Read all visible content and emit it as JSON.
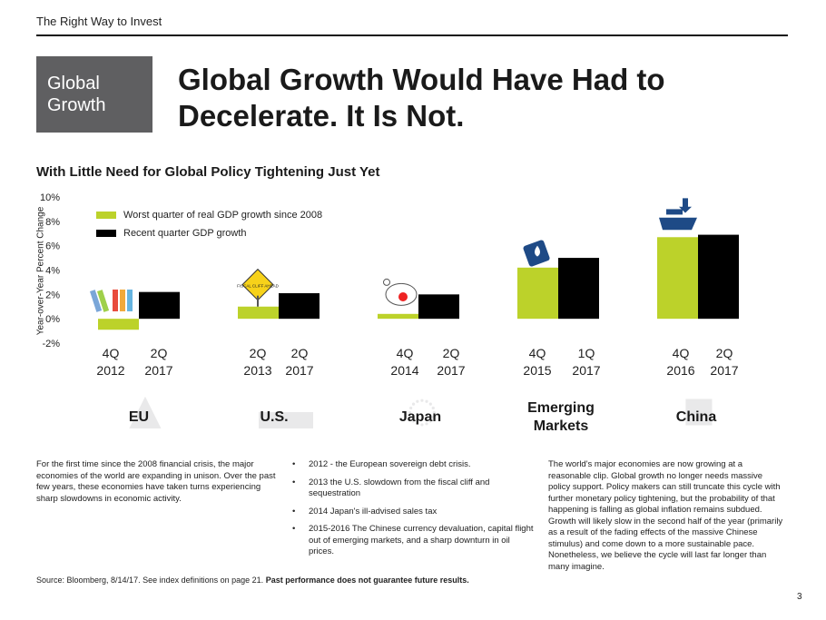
{
  "header": {
    "tagline": "The Right Way to Invest"
  },
  "badge": {
    "line1": "Global",
    "line2": "Growth"
  },
  "title": {
    "line1": "Global Growth Would Have Had to",
    "line2": "Decelerate.  It Is Not."
  },
  "subtitle": "With Little Need for Global Policy Tightening Just Yet",
  "colors": {
    "worst": "#bcd22a",
    "recent": "#000000",
    "badge_bg": "#5f5f61",
    "map": "#e9e9ea"
  },
  "chart_data": {
    "type": "bar",
    "ylabel": "Year-over-Year Percent Change",
    "ylim": [
      -2,
      10
    ],
    "yticks": [
      "10%",
      "8%",
      "6%",
      "4%",
      "2%",
      "0%",
      "-2%"
    ],
    "legend": {
      "placement": "top-left"
    },
    "series": [
      {
        "name": "Worst quarter of real GDP growth since 2008",
        "values": [
          -0.9,
          1.0,
          0.4,
          4.2,
          6.7
        ]
      },
      {
        "name": "Recent quarter GDP growth",
        "values": [
          2.2,
          2.1,
          2.0,
          5.0,
          6.9
        ]
      }
    ],
    "groups": [
      {
        "region": "EU",
        "labels": [
          {
            "q": "4Q",
            "y": "2012"
          },
          {
            "q": "2Q",
            "y": "2017"
          }
        ]
      },
      {
        "region": "U.S.",
        "labels": [
          {
            "q": "2Q",
            "y": "2013"
          },
          {
            "q": "2Q",
            "y": "2017"
          }
        ]
      },
      {
        "region": "Japan",
        "labels": [
          {
            "q": "4Q",
            "y": "2014"
          },
          {
            "q": "2Q",
            "y": "2017"
          }
        ]
      },
      {
        "region": "Emerging Markets",
        "labels": [
          {
            "q": "4Q",
            "y": "2015"
          },
          {
            "q": "1Q",
            "y": "2017"
          }
        ]
      },
      {
        "region": "China",
        "labels": [
          {
            "q": "4Q",
            "y": "2016"
          },
          {
            "q": "2Q",
            "y": "2017"
          }
        ]
      }
    ],
    "icons": [
      "books-icon",
      "fiscal-cliff-sign-icon",
      "piggy-bank-icon",
      "currency-icon",
      "cargo-ship-icon"
    ],
    "sign_text": "FISCAL CLIFF AHEAD"
  },
  "text": {
    "left": "For the first time since the 2008 financial crisis, the major economies of the world are expanding in unison. Over the past few years, these economies have taken turns experiencing sharp slowdowns in economic activity.",
    "bullets": [
      "2012 - the European sovereign debt crisis.",
      "2013 the U.S. slowdown from the fiscal cliff and sequestration",
      "2014 Japan's ill-advised sales tax",
      "2015-2016  The Chinese currency devaluation, capital flight out of emerging markets, and a sharp downturn in oil prices."
    ],
    "right": "The world's major economies are now growing at a reasonable clip. Global growth no longer needs massive policy support. Policy makers can still truncate this cycle with further monetary policy tightening, but the probability of that happening is falling as global inflation remains subdued. Growth will likely slow in the second half of the year (primarily as a result of the fading effects of the massive Chinese stimulus) and come down to a more sustainable pace. Nonetheless, we believe the cycle will last far longer than many imagine."
  },
  "footer": {
    "source": "Source: Bloomberg, 8/14/17. See index definitions on page 21.",
    "disclaimer": "Past performance does not guarantee future results.",
    "page": "3"
  }
}
